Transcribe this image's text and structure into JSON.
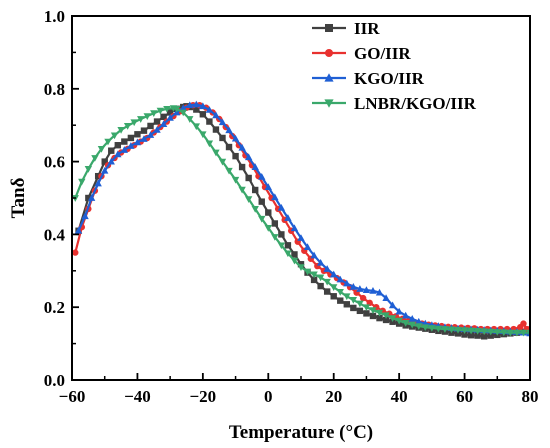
{
  "chart_data": {
    "type": "line",
    "title": "",
    "xlabel": "Temperature (°C)",
    "ylabel": "Tanδ",
    "xlim": [
      -60,
      80
    ],
    "ylim": [
      0.0,
      1.0
    ],
    "x_ticks": [
      -60,
      -40,
      -20,
      0,
      20,
      40,
      60,
      80
    ],
    "y_ticks": [
      0.0,
      0.2,
      0.4,
      0.6,
      0.8,
      1.0
    ],
    "x_tick_labels": [
      "−60",
      "−40",
      "−20",
      "0",
      "20",
      "40",
      "60",
      "80"
    ],
    "y_tick_labels": [
      "0.0",
      "0.2",
      "0.4",
      "0.6",
      "0.8",
      "1.0"
    ],
    "grid": false,
    "legend_position": "top-right",
    "series": [
      {
        "name": "IIR",
        "color": "#404040",
        "marker": "square",
        "points": [
          [
            -58,
            0.41
          ],
          [
            -55,
            0.5
          ],
          [
            -52,
            0.56
          ],
          [
            -50,
            0.6
          ],
          [
            -48,
            0.63
          ],
          [
            -46,
            0.645
          ],
          [
            -44,
            0.655
          ],
          [
            -42,
            0.665
          ],
          [
            -40,
            0.675
          ],
          [
            -38,
            0.685
          ],
          [
            -36,
            0.698
          ],
          [
            -34,
            0.71
          ],
          [
            -32,
            0.723
          ],
          [
            -30,
            0.735
          ],
          [
            -28,
            0.745
          ],
          [
            -26,
            0.75
          ],
          [
            -25,
            0.752
          ],
          [
            -24,
            0.75
          ],
          [
            -22,
            0.743
          ],
          [
            -20,
            0.73
          ],
          [
            -18,
            0.71
          ],
          [
            -16,
            0.688
          ],
          [
            -14,
            0.665
          ],
          [
            -12,
            0.64
          ],
          [
            -10,
            0.615
          ],
          [
            -8,
            0.585
          ],
          [
            -6,
            0.555
          ],
          [
            -4,
            0.522
          ],
          [
            -2,
            0.49
          ],
          [
            0,
            0.46
          ],
          [
            2,
            0.43
          ],
          [
            4,
            0.4
          ],
          [
            6,
            0.37
          ],
          [
            8,
            0.345
          ],
          [
            10,
            0.318
          ],
          [
            12,
            0.295
          ],
          [
            14,
            0.275
          ],
          [
            16,
            0.258
          ],
          [
            18,
            0.243
          ],
          [
            20,
            0.23
          ],
          [
            22,
            0.218
          ],
          [
            24,
            0.208
          ],
          [
            26,
            0.198
          ],
          [
            28,
            0.19
          ],
          [
            30,
            0.183
          ],
          [
            32,
            0.176
          ],
          [
            34,
            0.17
          ],
          [
            36,
            0.165
          ],
          [
            38,
            0.16
          ],
          [
            40,
            0.155
          ],
          [
            42,
            0.15
          ],
          [
            44,
            0.147
          ],
          [
            46,
            0.144
          ],
          [
            48,
            0.141
          ],
          [
            50,
            0.138
          ],
          [
            52,
            0.135
          ],
          [
            54,
            0.133
          ],
          [
            56,
            0.13
          ],
          [
            58,
            0.128
          ],
          [
            60,
            0.125
          ],
          [
            62,
            0.123
          ],
          [
            64,
            0.122
          ],
          [
            66,
            0.12
          ],
          [
            68,
            0.122
          ],
          [
            70,
            0.124
          ],
          [
            72,
            0.126
          ],
          [
            74,
            0.128
          ],
          [
            76,
            0.13
          ],
          [
            78,
            0.132
          ],
          [
            80,
            0.133
          ]
        ]
      },
      {
        "name": "GO/IIR",
        "color": "#e8312f",
        "marker": "circle",
        "points": [
          [
            -59,
            0.35
          ],
          [
            -57,
            0.42
          ],
          [
            -55,
            0.47
          ],
          [
            -53,
            0.52
          ],
          [
            -51,
            0.56
          ],
          [
            -49,
            0.59
          ],
          [
            -47,
            0.61
          ],
          [
            -45,
            0.625
          ],
          [
            -43,
            0.635
          ],
          [
            -41,
            0.645
          ],
          [
            -39,
            0.655
          ],
          [
            -37,
            0.665
          ],
          [
            -35,
            0.68
          ],
          [
            -33,
            0.695
          ],
          [
            -31,
            0.71
          ],
          [
            -29,
            0.725
          ],
          [
            -27,
            0.738
          ],
          [
            -25,
            0.748
          ],
          [
            -23,
            0.755
          ],
          [
            -21,
            0.755
          ],
          [
            -19,
            0.748
          ],
          [
            -17,
            0.735
          ],
          [
            -15,
            0.717
          ],
          [
            -13,
            0.695
          ],
          [
            -11,
            0.67
          ],
          [
            -9,
            0.645
          ],
          [
            -7,
            0.617
          ],
          [
            -5,
            0.59
          ],
          [
            -3,
            0.56
          ],
          [
            -1,
            0.53
          ],
          [
            1,
            0.5
          ],
          [
            3,
            0.47
          ],
          [
            5,
            0.44
          ],
          [
            7,
            0.41
          ],
          [
            9,
            0.38
          ],
          [
            11,
            0.355
          ],
          [
            13,
            0.333
          ],
          [
            15,
            0.313
          ],
          [
            17,
            0.3
          ],
          [
            19,
            0.29
          ],
          [
            21,
            0.28
          ],
          [
            23,
            0.268
          ],
          [
            25,
            0.255
          ],
          [
            27,
            0.24
          ],
          [
            29,
            0.225
          ],
          [
            31,
            0.212
          ],
          [
            33,
            0.2
          ],
          [
            35,
            0.19
          ],
          [
            37,
            0.182
          ],
          [
            39,
            0.175
          ],
          [
            41,
            0.168
          ],
          [
            43,
            0.163
          ],
          [
            45,
            0.158
          ],
          [
            47,
            0.155
          ],
          [
            49,
            0.152
          ],
          [
            51,
            0.15
          ],
          [
            53,
            0.148
          ],
          [
            55,
            0.146
          ],
          [
            57,
            0.145
          ],
          [
            59,
            0.144
          ],
          [
            61,
            0.143
          ],
          [
            63,
            0.142
          ],
          [
            65,
            0.14
          ],
          [
            67,
            0.14
          ],
          [
            69,
            0.14
          ],
          [
            71,
            0.14
          ],
          [
            73,
            0.14
          ],
          [
            75,
            0.14
          ],
          [
            77,
            0.145
          ],
          [
            78,
            0.155
          ],
          [
            79,
            0.14
          ],
          [
            80,
            0.14
          ]
        ]
      },
      {
        "name": "KGO/IIR",
        "color": "#1f5fd4",
        "marker": "triangle-up",
        "points": [
          [
            -58,
            0.41
          ],
          [
            -56,
            0.45
          ],
          [
            -54,
            0.5
          ],
          [
            -52,
            0.54
          ],
          [
            -50,
            0.575
          ],
          [
            -48,
            0.6
          ],
          [
            -46,
            0.62
          ],
          [
            -44,
            0.632
          ],
          [
            -42,
            0.643
          ],
          [
            -40,
            0.653
          ],
          [
            -38,
            0.662
          ],
          [
            -36,
            0.673
          ],
          [
            -34,
            0.687
          ],
          [
            -32,
            0.703
          ],
          [
            -30,
            0.72
          ],
          [
            -28,
            0.735
          ],
          [
            -26,
            0.747
          ],
          [
            -24,
            0.755
          ],
          [
            -22,
            0.757
          ],
          [
            -20,
            0.752
          ],
          [
            -18,
            0.742
          ],
          [
            -16,
            0.727
          ],
          [
            -14,
            0.708
          ],
          [
            -12,
            0.686
          ],
          [
            -10,
            0.663
          ],
          [
            -8,
            0.638
          ],
          [
            -6,
            0.612
          ],
          [
            -4,
            0.585
          ],
          [
            -2,
            0.558
          ],
          [
            0,
            0.53
          ],
          [
            2,
            0.502
          ],
          [
            4,
            0.473
          ],
          [
            6,
            0.445
          ],
          [
            8,
            0.417
          ],
          [
            10,
            0.39
          ],
          [
            12,
            0.365
          ],
          [
            14,
            0.342
          ],
          [
            16,
            0.322
          ],
          [
            18,
            0.305
          ],
          [
            20,
            0.29
          ],
          [
            22,
            0.276
          ],
          [
            24,
            0.265
          ],
          [
            26,
            0.256
          ],
          [
            28,
            0.25
          ],
          [
            30,
            0.247
          ],
          [
            32,
            0.245
          ],
          [
            34,
            0.24
          ],
          [
            36,
            0.225
          ],
          [
            38,
            0.205
          ],
          [
            40,
            0.188
          ],
          [
            42,
            0.177
          ],
          [
            44,
            0.168
          ],
          [
            46,
            0.16
          ],
          [
            48,
            0.155
          ],
          [
            50,
            0.151
          ],
          [
            52,
            0.148
          ],
          [
            54,
            0.145
          ],
          [
            56,
            0.143
          ],
          [
            58,
            0.141
          ],
          [
            60,
            0.14
          ],
          [
            62,
            0.139
          ],
          [
            64,
            0.138
          ],
          [
            66,
            0.137
          ],
          [
            68,
            0.136
          ],
          [
            70,
            0.135
          ],
          [
            72,
            0.134
          ],
          [
            74,
            0.133
          ],
          [
            76,
            0.132
          ],
          [
            78,
            0.13
          ],
          [
            80,
            0.128
          ]
        ]
      },
      {
        "name": "LNBR/KGO/IIR",
        "color": "#3aa86b",
        "marker": "triangle-down",
        "points": [
          [
            -59,
            0.5
          ],
          [
            -57,
            0.545
          ],
          [
            -55,
            0.58
          ],
          [
            -53,
            0.61
          ],
          [
            -51,
            0.635
          ],
          [
            -49,
            0.655
          ],
          [
            -47,
            0.672
          ],
          [
            -45,
            0.687
          ],
          [
            -43,
            0.698
          ],
          [
            -41,
            0.708
          ],
          [
            -39,
            0.717
          ],
          [
            -37,
            0.725
          ],
          [
            -35,
            0.733
          ],
          [
            -33,
            0.74
          ],
          [
            -31,
            0.745
          ],
          [
            -29,
            0.747
          ],
          [
            -28,
            0.745
          ],
          [
            -26,
            0.735
          ],
          [
            -24,
            0.717
          ],
          [
            -22,
            0.697
          ],
          [
            -20,
            0.675
          ],
          [
            -18,
            0.65
          ],
          [
            -16,
            0.625
          ],
          [
            -14,
            0.6
          ],
          [
            -12,
            0.575
          ],
          [
            -10,
            0.55
          ],
          [
            -8,
            0.523
          ],
          [
            -6,
            0.497
          ],
          [
            -4,
            0.47
          ],
          [
            -2,
            0.443
          ],
          [
            0,
            0.418
          ],
          [
            2,
            0.393
          ],
          [
            4,
            0.37
          ],
          [
            6,
            0.348
          ],
          [
            8,
            0.328
          ],
          [
            10,
            0.31
          ],
          [
            12,
            0.298
          ],
          [
            14,
            0.29
          ],
          [
            16,
            0.282
          ],
          [
            18,
            0.27
          ],
          [
            20,
            0.255
          ],
          [
            22,
            0.242
          ],
          [
            24,
            0.23
          ],
          [
            26,
            0.22
          ],
          [
            28,
            0.21
          ],
          [
            30,
            0.2
          ],
          [
            32,
            0.192
          ],
          [
            34,
            0.185
          ],
          [
            36,
            0.178
          ],
          [
            38,
            0.17
          ],
          [
            40,
            0.163
          ],
          [
            42,
            0.157
          ],
          [
            44,
            0.152
          ],
          [
            46,
            0.148
          ],
          [
            48,
            0.145
          ],
          [
            50,
            0.143
          ],
          [
            52,
            0.141
          ],
          [
            54,
            0.14
          ],
          [
            56,
            0.139
          ],
          [
            58,
            0.138
          ],
          [
            60,
            0.137
          ],
          [
            62,
            0.136
          ],
          [
            64,
            0.135
          ],
          [
            66,
            0.134
          ],
          [
            68,
            0.133
          ],
          [
            70,
            0.132
          ],
          [
            72,
            0.131
          ],
          [
            74,
            0.13
          ],
          [
            76,
            0.13
          ],
          [
            78,
            0.13
          ],
          [
            80,
            0.13
          ]
        ]
      }
    ]
  }
}
